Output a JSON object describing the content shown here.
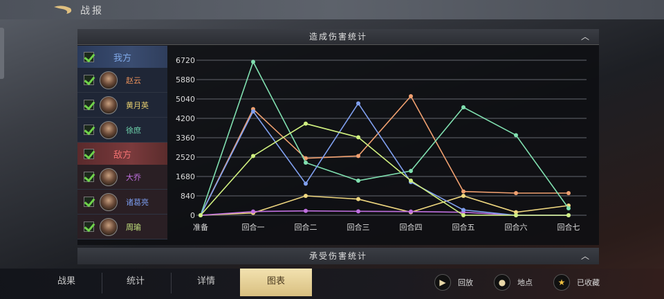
{
  "header": {
    "title": "战报",
    "back_icon": "back-arrow-icon"
  },
  "damage_dealt_title": "造成伤害统计",
  "damage_taken_title": "承受伤害统计",
  "sidebar": {
    "ally": {
      "label": "我方",
      "color": "#7fa8e8",
      "members": [
        {
          "name": "赵云",
          "color": "#e8905a"
        },
        {
          "name": "黄月英",
          "color": "#e8d070"
        },
        {
          "name": "徐庶",
          "color": "#70d8b0"
        }
      ]
    },
    "enemy": {
      "label": "敌方",
      "color": "#f07070",
      "members": [
        {
          "name": "大乔",
          "color": "#c070e0"
        },
        {
          "name": "诸葛亮",
          "color": "#7898e8"
        },
        {
          "name": "周瑜",
          "color": "#c8e880"
        }
      ]
    }
  },
  "chart_data": {
    "type": "line",
    "categories": [
      "准备",
      "回合一",
      "回合二",
      "回合三",
      "回合四",
      "回合五",
      "回合六",
      "回合七"
    ],
    "yticks": [
      "0",
      "840",
      "1680",
      "2520",
      "3360",
      "4200",
      "5040",
      "5880",
      "6720"
    ],
    "ylim": [
      0,
      6720
    ],
    "grid": true,
    "series": [
      {
        "name": "赵云",
        "color": "#f0a070",
        "values": [
          0,
          4600,
          2470,
          2570,
          5160,
          1030,
          960,
          960
        ]
      },
      {
        "name": "黄月英",
        "color": "#f0d880",
        "values": [
          0,
          100,
          840,
          700,
          130,
          840,
          130,
          420
        ]
      },
      {
        "name": "徐庶",
        "color": "#80e0b0",
        "values": [
          0,
          6650,
          2280,
          1500,
          1920,
          4680,
          3470,
          300
        ]
      },
      {
        "name": "大乔",
        "color": "#c070e0",
        "values": [
          0,
          160,
          190,
          170,
          160,
          130,
          0,
          0
        ]
      },
      {
        "name": "诸葛亮",
        "color": "#80a0f0",
        "values": [
          0,
          4500,
          1370,
          4850,
          1440,
          230,
          0,
          0
        ]
      },
      {
        "name": "周瑜",
        "color": "#d0f080",
        "values": [
          0,
          2570,
          3970,
          3380,
          1500,
          0,
          0,
          0
        ]
      }
    ]
  },
  "tabs": [
    {
      "label": "战果"
    },
    {
      "label": "统计"
    },
    {
      "label": "详情"
    },
    {
      "label": "图表",
      "selected": true
    }
  ],
  "actions": [
    {
      "label": "回放",
      "icon": "play-icon"
    },
    {
      "label": "地点",
      "icon": "location-pin-icon"
    },
    {
      "label": "已收藏",
      "icon": "star-icon"
    }
  ]
}
